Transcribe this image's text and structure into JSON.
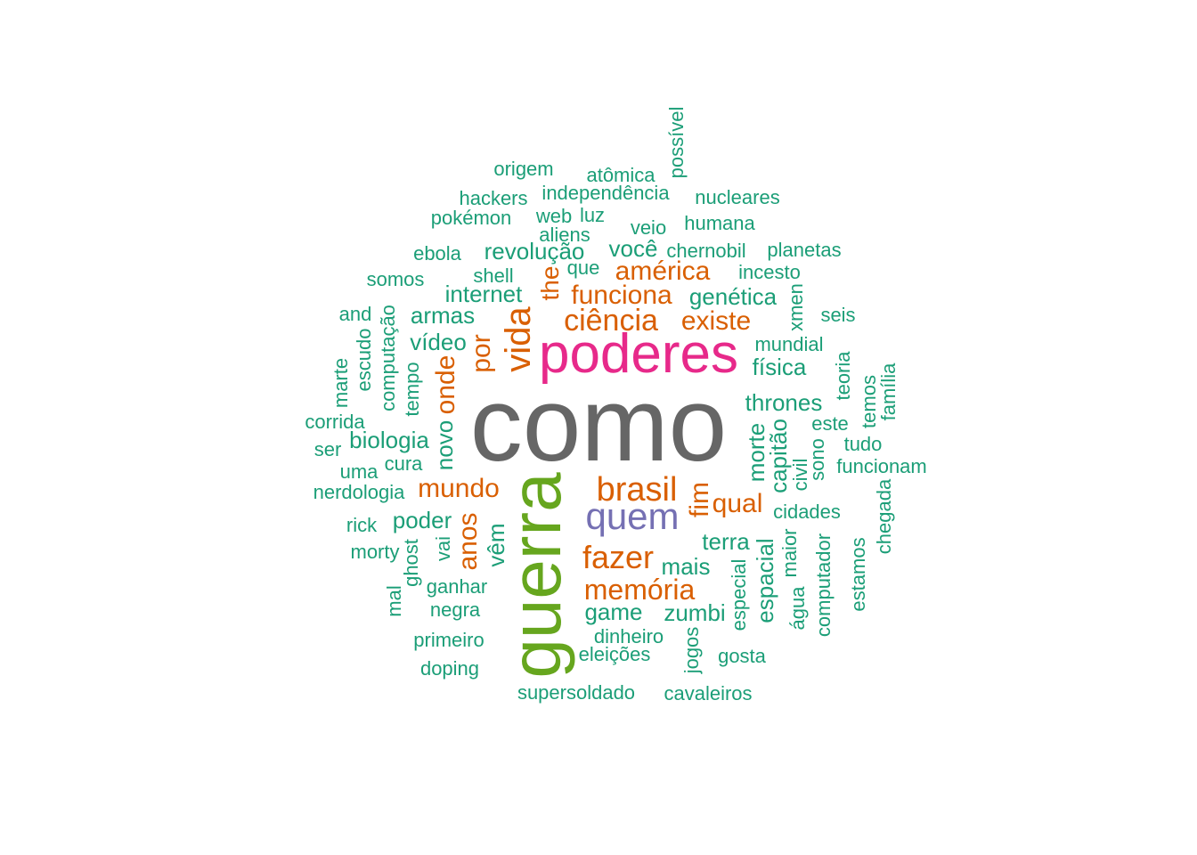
{
  "colors": {
    "teal": "#1b9e77",
    "orange": "#d95f02",
    "purple": "#7570b3",
    "magenta": "#e7298a",
    "green": "#66a61e",
    "gray": "#666666"
  },
  "words": [
    {
      "text": "como",
      "color": "gray",
      "vertical": false
    },
    {
      "text": "poderes",
      "color": "magenta",
      "vertical": false
    },
    {
      "text": "guerra",
      "color": "green",
      "vertical": true
    },
    {
      "text": "quem",
      "color": "purple",
      "vertical": false
    },
    {
      "text": "brasil",
      "color": "orange",
      "vertical": false
    },
    {
      "text": "ciência",
      "color": "orange",
      "vertical": false
    },
    {
      "text": "vida",
      "color": "orange",
      "vertical": true
    },
    {
      "text": "fazer",
      "color": "orange",
      "vertical": false
    },
    {
      "text": "memória",
      "color": "orange",
      "vertical": false
    },
    {
      "text": "mundo",
      "color": "orange",
      "vertical": false
    },
    {
      "text": "américa",
      "color": "orange",
      "vertical": false
    },
    {
      "text": "funciona",
      "color": "orange",
      "vertical": false
    },
    {
      "text": "existe",
      "color": "orange",
      "vertical": false
    },
    {
      "text": "qual",
      "color": "orange",
      "vertical": false
    },
    {
      "text": "por",
      "color": "orange",
      "vertical": true
    },
    {
      "text": "onde",
      "color": "orange",
      "vertical": true
    },
    {
      "text": "anos",
      "color": "orange",
      "vertical": true
    },
    {
      "text": "fim",
      "color": "orange",
      "vertical": true
    },
    {
      "text": "the",
      "color": "orange",
      "vertical": true
    },
    {
      "text": "revolução",
      "color": "teal",
      "vertical": false
    },
    {
      "text": "você",
      "color": "teal",
      "vertical": false
    },
    {
      "text": "genética",
      "color": "teal",
      "vertical": false
    },
    {
      "text": "internet",
      "color": "teal",
      "vertical": false
    },
    {
      "text": "armas",
      "color": "teal",
      "vertical": false
    },
    {
      "text": "vídeo",
      "color": "teal",
      "vertical": false
    },
    {
      "text": "biologia",
      "color": "teal",
      "vertical": false
    },
    {
      "text": "física",
      "color": "teal",
      "vertical": false
    },
    {
      "text": "thrones",
      "color": "teal",
      "vertical": false
    },
    {
      "text": "poder",
      "color": "teal",
      "vertical": false
    },
    {
      "text": "terra",
      "color": "teal",
      "vertical": false
    },
    {
      "text": "mais",
      "color": "teal",
      "vertical": false
    },
    {
      "text": "game",
      "color": "teal",
      "vertical": false
    },
    {
      "text": "zumbi",
      "color": "teal",
      "vertical": false
    },
    {
      "text": "morte",
      "color": "teal",
      "vertical": true
    },
    {
      "text": "capitão",
      "color": "teal",
      "vertical": true
    },
    {
      "text": "espacial",
      "color": "teal",
      "vertical": true
    },
    {
      "text": "novo",
      "color": "teal",
      "vertical": true
    },
    {
      "text": "vêm",
      "color": "teal",
      "vertical": true
    },
    {
      "text": "origem",
      "color": "teal",
      "vertical": false
    },
    {
      "text": "atômica",
      "color": "teal",
      "vertical": false
    },
    {
      "text": "possível",
      "color": "teal",
      "vertical": true
    },
    {
      "text": "hackers",
      "color": "teal",
      "vertical": false
    },
    {
      "text": "independência",
      "color": "teal",
      "vertical": false
    },
    {
      "text": "nucleares",
      "color": "teal",
      "vertical": false
    },
    {
      "text": "pokémon",
      "color": "teal",
      "vertical": false
    },
    {
      "text": "web",
      "color": "teal",
      "vertical": false
    },
    {
      "text": "luz",
      "color": "teal",
      "vertical": false
    },
    {
      "text": "humana",
      "color": "teal",
      "vertical": false
    },
    {
      "text": "aliens",
      "color": "teal",
      "vertical": false
    },
    {
      "text": "veio",
      "color": "teal",
      "vertical": false
    },
    {
      "text": "ebola",
      "color": "teal",
      "vertical": false
    },
    {
      "text": "chernobil",
      "color": "teal",
      "vertical": false
    },
    {
      "text": "planetas",
      "color": "teal",
      "vertical": false
    },
    {
      "text": "que",
      "color": "teal",
      "vertical": false
    },
    {
      "text": "shell",
      "color": "teal",
      "vertical": false
    },
    {
      "text": "incesto",
      "color": "teal",
      "vertical": false
    },
    {
      "text": "somos",
      "color": "teal",
      "vertical": false
    },
    {
      "text": "xmen",
      "color": "teal",
      "vertical": true
    },
    {
      "text": "and",
      "color": "teal",
      "vertical": false
    },
    {
      "text": "seis",
      "color": "teal",
      "vertical": false
    },
    {
      "text": "computação",
      "color": "teal",
      "vertical": true
    },
    {
      "text": "escudo",
      "color": "teal",
      "vertical": true
    },
    {
      "text": "mundial",
      "color": "teal",
      "vertical": false
    },
    {
      "text": "marte",
      "color": "teal",
      "vertical": true
    },
    {
      "text": "tempo",
      "color": "teal",
      "vertical": true
    },
    {
      "text": "teoria",
      "color": "teal",
      "vertical": true
    },
    {
      "text": "família",
      "color": "teal",
      "vertical": true
    },
    {
      "text": "temos",
      "color": "teal",
      "vertical": true
    },
    {
      "text": "corrida",
      "color": "teal",
      "vertical": false
    },
    {
      "text": "este",
      "color": "teal",
      "vertical": false
    },
    {
      "text": "ser",
      "color": "teal",
      "vertical": false
    },
    {
      "text": "tudo",
      "color": "teal",
      "vertical": false
    },
    {
      "text": "sono",
      "color": "teal",
      "vertical": true
    },
    {
      "text": "civil",
      "color": "teal",
      "vertical": true
    },
    {
      "text": "uma",
      "color": "teal",
      "vertical": false
    },
    {
      "text": "cura",
      "color": "teal",
      "vertical": false
    },
    {
      "text": "funcionam",
      "color": "teal",
      "vertical": false
    },
    {
      "text": "nerdologia",
      "color": "teal",
      "vertical": false
    },
    {
      "text": "chegada",
      "color": "teal",
      "vertical": true
    },
    {
      "text": "cidades",
      "color": "teal",
      "vertical": false
    },
    {
      "text": "rick",
      "color": "teal",
      "vertical": false
    },
    {
      "text": "vai",
      "color": "teal",
      "vertical": true
    },
    {
      "text": "morty",
      "color": "teal",
      "vertical": false
    },
    {
      "text": "ghost",
      "color": "teal",
      "vertical": true
    },
    {
      "text": "maior",
      "color": "teal",
      "vertical": true
    },
    {
      "text": "computador",
      "color": "teal",
      "vertical": true
    },
    {
      "text": "estamos",
      "color": "teal",
      "vertical": true
    },
    {
      "text": "especial",
      "color": "teal",
      "vertical": true
    },
    {
      "text": "mal",
      "color": "teal",
      "vertical": true
    },
    {
      "text": "ganhar",
      "color": "teal",
      "vertical": false
    },
    {
      "text": "negra",
      "color": "teal",
      "vertical": false
    },
    {
      "text": "água",
      "color": "teal",
      "vertical": true
    },
    {
      "text": "primeiro",
      "color": "teal",
      "vertical": false
    },
    {
      "text": "dinheiro",
      "color": "teal",
      "vertical": false
    },
    {
      "text": "jogos",
      "color": "teal",
      "vertical": true
    },
    {
      "text": "eleições",
      "color": "teal",
      "vertical": false
    },
    {
      "text": "gosta",
      "color": "teal",
      "vertical": false
    },
    {
      "text": "doping",
      "color": "teal",
      "vertical": false
    },
    {
      "text": "supersoldado",
      "color": "teal",
      "vertical": false
    },
    {
      "text": "cavaleiros",
      "color": "teal",
      "vertical": false
    }
  ]
}
